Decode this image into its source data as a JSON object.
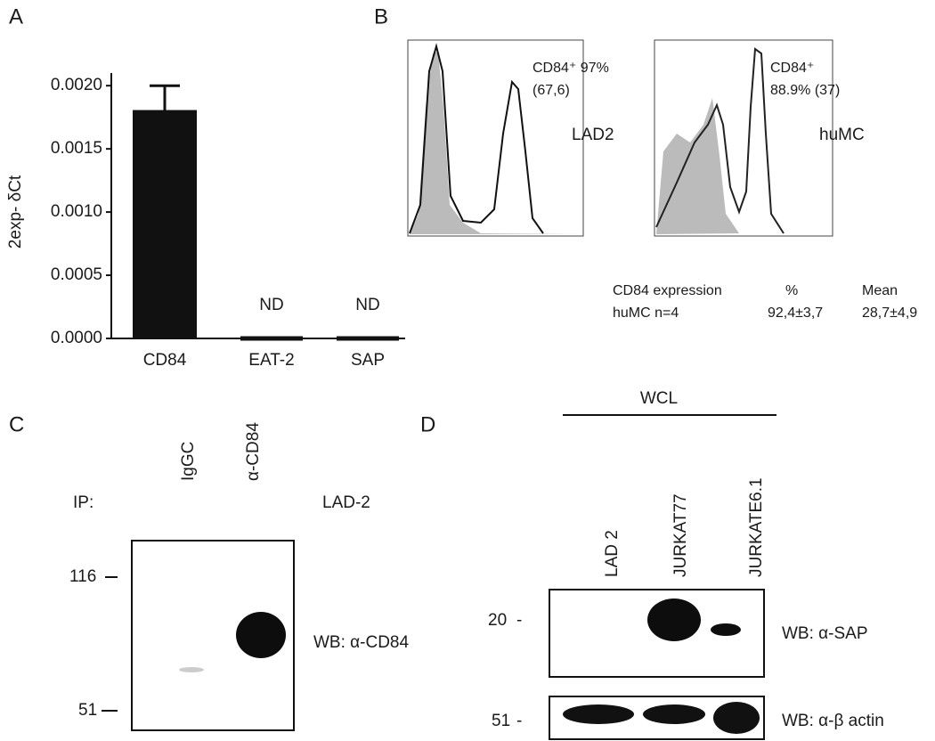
{
  "chart_data": {
    "type": "bar",
    "panel": "A",
    "ylabel": "2exp- δCt",
    "categories": [
      "CD84",
      "EAT-2",
      "SAP"
    ],
    "values": [
      0.0018,
      0,
      0
    ],
    "errors": [
      0.0002,
      null,
      null
    ],
    "value_labels": [
      null,
      "ND",
      "ND"
    ],
    "color": "#111111",
    "ylim": [
      0,
      0.0021
    ],
    "yticks": [
      {
        "value": 0,
        "label": "0.0000"
      },
      {
        "value": 0.0005,
        "label": "0.0005"
      },
      {
        "value": 0.001,
        "label": "0.0010"
      },
      {
        "value": 0.0015,
        "label": "0.0015"
      },
      {
        "value": 0.002,
        "label": "0.0020"
      }
    ]
  },
  "panel_b": {
    "label": "B",
    "histograms": [
      {
        "annotation": "CD84⁺  97%",
        "detail": "(67,6)",
        "cell": "LAD2"
      },
      {
        "annotation": "CD84⁺",
        "detail": "88.9% (37)",
        "cell": "huMC"
      }
    ],
    "table": {
      "header": [
        "CD84 expression",
        "%",
        "Mean"
      ],
      "rows": [
        [
          "huMC  n=4",
          "92,4±3,7",
          "28,7±4,9"
        ]
      ]
    }
  },
  "panel_c": {
    "label": "C",
    "ip": "IP:",
    "lanes": [
      "IgGC",
      "α-CD84"
    ],
    "cell": "LAD-2",
    "markers": [
      "116",
      "51"
    ],
    "wb": "WB: α-CD84"
  },
  "panel_d": {
    "label": "D",
    "group": "WCL",
    "lanes": [
      "LAD 2",
      "JURKAT77",
      "JURKATE6.1"
    ],
    "blots": [
      {
        "marker": "20",
        "wb": "WB: α-SAP"
      },
      {
        "marker": "51",
        "wb": "WB: α-β actin"
      }
    ]
  }
}
